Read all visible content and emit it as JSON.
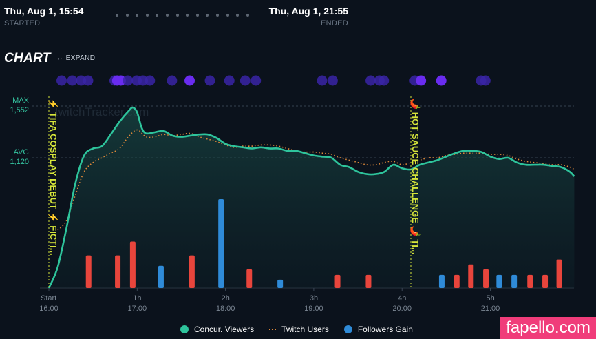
{
  "header": {
    "start_date": "Thu, Aug 1, 15:54",
    "start_label": "STARTED",
    "end_date": "Thu, Aug 1, 21:55",
    "end_label": "ENDED"
  },
  "section": {
    "title": "CHART",
    "expand_label": "↔ EXPAND"
  },
  "yaxis": {
    "max_label": "MAX",
    "max_value": "1,552",
    "avg_label": "AVG",
    "avg_value": "1,120"
  },
  "watermark_text": "twitchTracker.com",
  "markers": [
    {
      "label": "⚡ TIFA COSPLAY DEBUT ⚡ FICTI...",
      "color": "#d7e63a"
    },
    {
      "label": "🌶️ HOT SAUCE CHALLENGE 🌶️ TI...",
      "color": "#d7e63a"
    }
  ],
  "legend": {
    "viewers": "Concur. Viewers",
    "twitch_users": "Twitch Users",
    "followers": "Followers Gain"
  },
  "site_watermark": "fapello.com",
  "colors": {
    "viewers": "#2ec49c",
    "twitch_users": "#e08a3a",
    "followers_positive": "#2f8bd8",
    "followers_red": "#e8453c",
    "event_dot": "#3a24a6",
    "event_dot_bright": "#6a2cf0"
  },
  "chart_data": {
    "type": "line",
    "x_ticks": [
      {
        "top": "Start",
        "bottom": "16:00"
      },
      {
        "top": "1h",
        "bottom": "17:00"
      },
      {
        "top": "2h",
        "bottom": "18:00"
      },
      {
        "top": "3h",
        "bottom": "19:00"
      },
      {
        "top": "4h",
        "bottom": "20:00"
      },
      {
        "top": "5h",
        "bottom": "21:00"
      }
    ],
    "x_range_hours": [
      0,
      6.0
    ],
    "y_reference": {
      "max": 1552,
      "avg": 1120
    },
    "series": [
      {
        "name": "Concur. Viewers",
        "kind": "area-line",
        "points": [
          [
            0.0,
            0
          ],
          [
            0.1,
            180
          ],
          [
            0.2,
            520
          ],
          [
            0.3,
            900
          ],
          [
            0.4,
            1140
          ],
          [
            0.5,
            1200
          ],
          [
            0.6,
            1220
          ],
          [
            0.7,
            1320
          ],
          [
            0.8,
            1430
          ],
          [
            0.9,
            1520
          ],
          [
            0.95,
            1552
          ],
          [
            1.0,
            1510
          ],
          [
            1.05,
            1380
          ],
          [
            1.1,
            1330
          ],
          [
            1.2,
            1340
          ],
          [
            1.3,
            1350
          ],
          [
            1.4,
            1310
          ],
          [
            1.5,
            1300
          ],
          [
            1.6,
            1310
          ],
          [
            1.7,
            1320
          ],
          [
            1.8,
            1320
          ],
          [
            1.9,
            1290
          ],
          [
            2.0,
            1240
          ],
          [
            2.1,
            1220
          ],
          [
            2.2,
            1210
          ],
          [
            2.3,
            1200
          ],
          [
            2.4,
            1210
          ],
          [
            2.5,
            1200
          ],
          [
            2.6,
            1200
          ],
          [
            2.7,
            1180
          ],
          [
            2.8,
            1180
          ],
          [
            2.9,
            1160
          ],
          [
            3.0,
            1140
          ],
          [
            3.1,
            1130
          ],
          [
            3.2,
            1120
          ],
          [
            3.3,
            1060
          ],
          [
            3.4,
            1040
          ],
          [
            3.5,
            1000
          ],
          [
            3.6,
            980
          ],
          [
            3.7,
            980
          ],
          [
            3.8,
            1000
          ],
          [
            3.9,
            1060
          ],
          [
            4.0,
            1030
          ],
          [
            4.1,
            1020
          ],
          [
            4.2,
            1060
          ],
          [
            4.3,
            1080
          ],
          [
            4.4,
            1100
          ],
          [
            4.5,
            1130
          ],
          [
            4.6,
            1160
          ],
          [
            4.7,
            1180
          ],
          [
            4.8,
            1180
          ],
          [
            4.9,
            1170
          ],
          [
            5.0,
            1130
          ],
          [
            5.1,
            1110
          ],
          [
            5.2,
            1120
          ],
          [
            5.3,
            1080
          ],
          [
            5.4,
            1060
          ],
          [
            5.5,
            1060
          ],
          [
            5.6,
            1060
          ],
          [
            5.7,
            1050
          ],
          [
            5.8,
            1040
          ],
          [
            5.9,
            1000
          ],
          [
            5.95,
            960
          ]
        ]
      },
      {
        "name": "Twitch Users",
        "kind": "dotted-line",
        "points": [
          [
            0.1,
            500
          ],
          [
            0.2,
            580
          ],
          [
            0.3,
            800
          ],
          [
            0.4,
            1000
          ],
          [
            0.5,
            1080
          ],
          [
            0.6,
            1120
          ],
          [
            0.7,
            1160
          ],
          [
            0.8,
            1200
          ],
          [
            0.9,
            1300
          ],
          [
            1.0,
            1360
          ],
          [
            1.1,
            1300
          ],
          [
            1.2,
            1300
          ],
          [
            1.3,
            1320
          ],
          [
            1.4,
            1310
          ],
          [
            1.5,
            1320
          ],
          [
            1.6,
            1330
          ],
          [
            1.7,
            1300
          ],
          [
            1.8,
            1280
          ],
          [
            1.9,
            1260
          ],
          [
            2.0,
            1230
          ],
          [
            2.1,
            1210
          ],
          [
            2.2,
            1220
          ],
          [
            2.3,
            1220
          ],
          [
            2.4,
            1230
          ],
          [
            2.5,
            1230
          ],
          [
            2.6,
            1220
          ],
          [
            2.7,
            1200
          ],
          [
            2.8,
            1180
          ],
          [
            2.9,
            1170
          ],
          [
            3.0,
            1170
          ],
          [
            3.1,
            1160
          ],
          [
            3.2,
            1150
          ],
          [
            3.3,
            1120
          ],
          [
            3.4,
            1100
          ],
          [
            3.5,
            1080
          ],
          [
            3.6,
            1060
          ],
          [
            3.7,
            1060
          ],
          [
            3.8,
            1080
          ],
          [
            3.9,
            1090
          ],
          [
            4.0,
            1060
          ],
          [
            4.1,
            1080
          ],
          [
            4.2,
            1100
          ],
          [
            4.3,
            1120
          ],
          [
            4.4,
            1120
          ],
          [
            4.5,
            1140
          ],
          [
            4.6,
            1150
          ],
          [
            4.7,
            1160
          ],
          [
            4.8,
            1160
          ],
          [
            4.9,
            1160
          ],
          [
            5.0,
            1150
          ],
          [
            5.1,
            1150
          ],
          [
            5.2,
            1140
          ],
          [
            5.3,
            1110
          ],
          [
            5.4,
            1090
          ],
          [
            5.5,
            1080
          ],
          [
            5.6,
            1070
          ],
          [
            5.7,
            1060
          ],
          [
            5.8,
            1060
          ],
          [
            5.9,
            1040
          ],
          [
            5.95,
            1020
          ]
        ]
      },
      {
        "name": "Followers Gain",
        "kind": "bars",
        "bars": [
          {
            "x": 0.45,
            "v": 47,
            "sign": "red"
          },
          {
            "x": 0.78,
            "v": 47,
            "sign": "red"
          },
          {
            "x": 0.95,
            "v": 67,
            "sign": "red"
          },
          {
            "x": 1.27,
            "v": 32,
            "sign": "blue"
          },
          {
            "x": 1.62,
            "v": 47,
            "sign": "red"
          },
          {
            "x": 1.95,
            "v": 128,
            "sign": "blue"
          },
          {
            "x": 2.27,
            "v": 27,
            "sign": "red"
          },
          {
            "x": 2.62,
            "v": 12,
            "sign": "blue"
          },
          {
            "x": 3.27,
            "v": 19,
            "sign": "red"
          },
          {
            "x": 3.62,
            "v": 19,
            "sign": "red"
          },
          {
            "x": 4.45,
            "v": 19,
            "sign": "blue"
          },
          {
            "x": 4.62,
            "v": 19,
            "sign": "red"
          },
          {
            "x": 4.78,
            "v": 34,
            "sign": "red"
          },
          {
            "x": 4.95,
            "v": 27,
            "sign": "red"
          },
          {
            "x": 5.1,
            "v": 19,
            "sign": "blue"
          },
          {
            "x": 5.27,
            "v": 19,
            "sign": "blue"
          },
          {
            "x": 5.45,
            "v": 19,
            "sign": "red"
          },
          {
            "x": 5.62,
            "v": 19,
            "sign": "red"
          },
          {
            "x": 5.78,
            "v": 41,
            "sign": "red"
          }
        ]
      },
      {
        "name": "Events",
        "kind": "dots",
        "points": [
          {
            "x": 0.3,
            "b": 0
          },
          {
            "x": 0.42,
            "b": 0
          },
          {
            "x": 0.52,
            "b": 0
          },
          {
            "x": 0.6,
            "b": 0
          },
          {
            "x": 0.9,
            "b": 0
          },
          {
            "x": 0.93,
            "b": 1
          },
          {
            "x": 0.97,
            "b": 1
          },
          {
            "x": 1.05,
            "b": 0
          },
          {
            "x": 1.15,
            "b": 0
          },
          {
            "x": 1.22,
            "b": 0
          },
          {
            "x": 1.3,
            "b": 0
          },
          {
            "x": 1.55,
            "b": 0
          },
          {
            "x": 1.75,
            "b": 1
          },
          {
            "x": 1.98,
            "b": 0
          },
          {
            "x": 2.2,
            "b": 0
          },
          {
            "x": 2.38,
            "b": 0
          },
          {
            "x": 2.5,
            "b": 0
          },
          {
            "x": 3.25,
            "b": 0
          },
          {
            "x": 3.37,
            "b": 0
          },
          {
            "x": 3.8,
            "b": 0
          },
          {
            "x": 3.9,
            "b": 0
          },
          {
            "x": 3.95,
            "b": 0
          },
          {
            "x": 4.3,
            "b": 0
          },
          {
            "x": 4.37,
            "b": 1
          },
          {
            "x": 4.6,
            "b": 1
          },
          {
            "x": 5.05,
            "b": 0
          },
          {
            "x": 5.1,
            "b": 0
          }
        ]
      }
    ]
  }
}
